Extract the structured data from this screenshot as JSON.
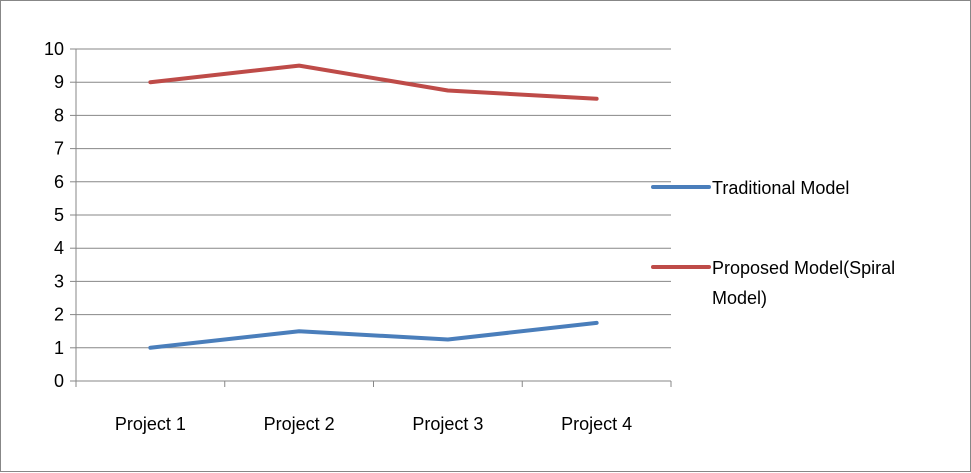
{
  "chart_data": {
    "type": "line",
    "categories": [
      "Project 1",
      "Project 2",
      "Project 3",
      "Project 4"
    ],
    "series": [
      {
        "name": "Traditional Model",
        "values": [
          1,
          1.5,
          1.25,
          1.75
        ],
        "color": "#4a7ebb"
      },
      {
        "name": "Proposed Model(Spiral Model)",
        "name_lines": [
          "Proposed Model(Spiral",
          "Model)"
        ],
        "values": [
          9,
          9.5,
          8.75,
          8.5
        ],
        "color": "#be4b48"
      }
    ],
    "ylim": [
      0,
      10
    ],
    "yticks": [
      0,
      1,
      2,
      3,
      4,
      5,
      6,
      7,
      8,
      9,
      10
    ],
    "grid": true,
    "legend_position": "right",
    "colors": {
      "gridline": "#878787",
      "axis": "#878787",
      "border": "#878787"
    }
  }
}
